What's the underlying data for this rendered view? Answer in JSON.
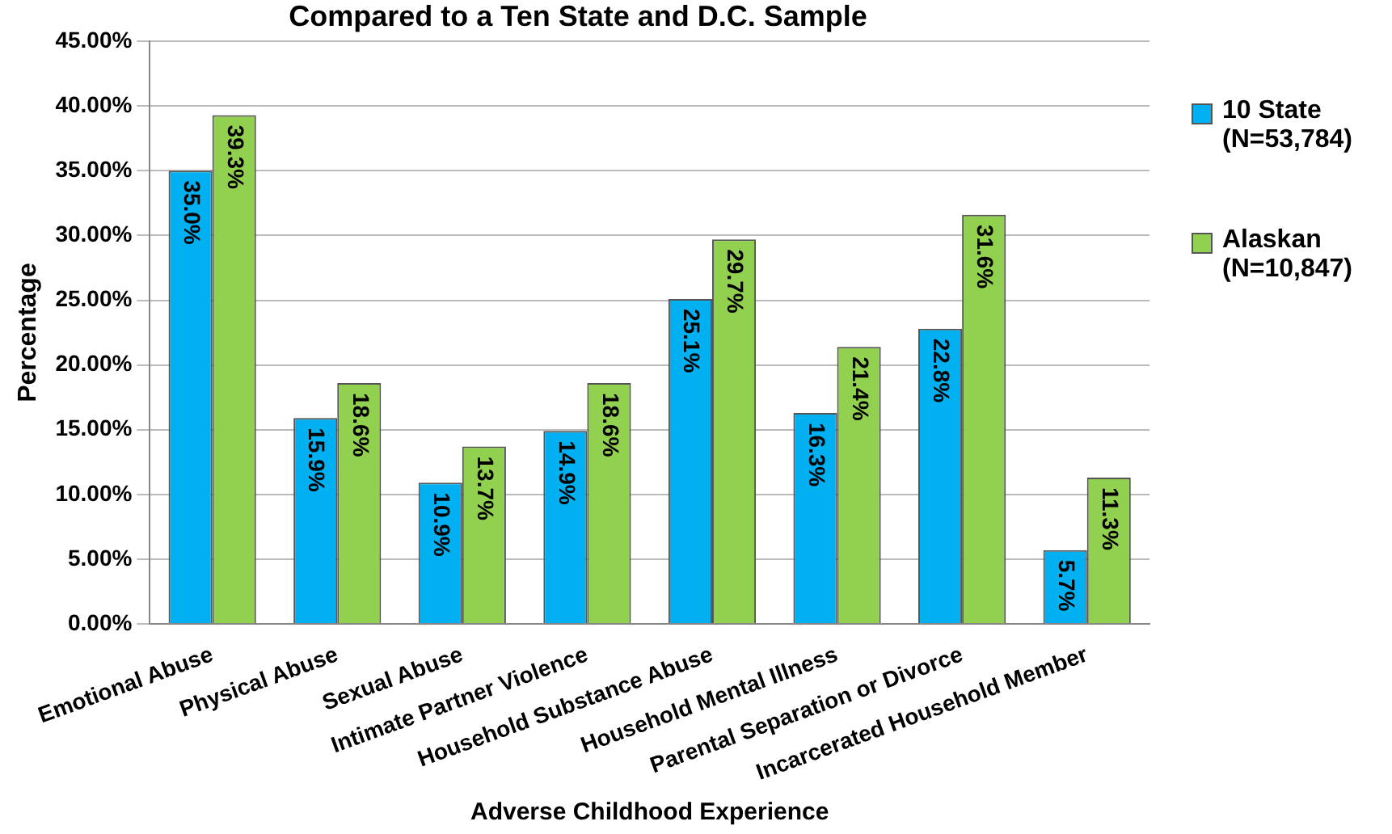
{
  "chart_data": {
    "type": "bar",
    "title": "Compared to a Ten State and D.C. Sample",
    "xlabel": "Adverse Childhood Experience",
    "ylabel": "Percentage",
    "categories": [
      "Emotional Abuse",
      "Physical Abuse",
      "Sexual Abuse",
      "Intimate Partner Violence",
      "Household Substance Abuse",
      "Household Mental Illness",
      "Parental Separation or Divorce",
      "Incarcerated Household Member"
    ],
    "series": [
      {
        "name": "10 State (N=53,784)",
        "color": "#00b0f0",
        "values": [
          35.0,
          15.9,
          10.9,
          14.9,
          25.1,
          16.3,
          22.8,
          5.7
        ],
        "value_labels": [
          "35.0%",
          "15.9%",
          "10.9%",
          "14.9%",
          "25.1%",
          "16.3%",
          "22.8%",
          "5.7%"
        ]
      },
      {
        "name": "Alaskan (N=10,847)",
        "color": "#92d050",
        "values": [
          39.3,
          18.6,
          13.7,
          18.6,
          29.7,
          21.4,
          31.6,
          11.3
        ],
        "value_labels": [
          "39.3%",
          "18.6%",
          "13.7%",
          "18.6%",
          "29.7%",
          "21.4%",
          "31.6%",
          "11.3%"
        ]
      }
    ],
    "ylim": [
      0,
      45
    ],
    "yticks": [
      {
        "value": 0,
        "label": "0.00%"
      },
      {
        "value": 5,
        "label": "5.00%"
      },
      {
        "value": 10,
        "label": "10.00%"
      },
      {
        "value": 15,
        "label": "15.00%"
      },
      {
        "value": 20,
        "label": "20.00%"
      },
      {
        "value": 25,
        "label": "25.00%"
      },
      {
        "value": 30,
        "label": "30.00%"
      },
      {
        "value": 35,
        "label": "35.00%"
      },
      {
        "value": 40,
        "label": "40.00%"
      },
      {
        "value": 45,
        "label": "45.00%"
      }
    ],
    "grid": "y",
    "legend": "right"
  }
}
